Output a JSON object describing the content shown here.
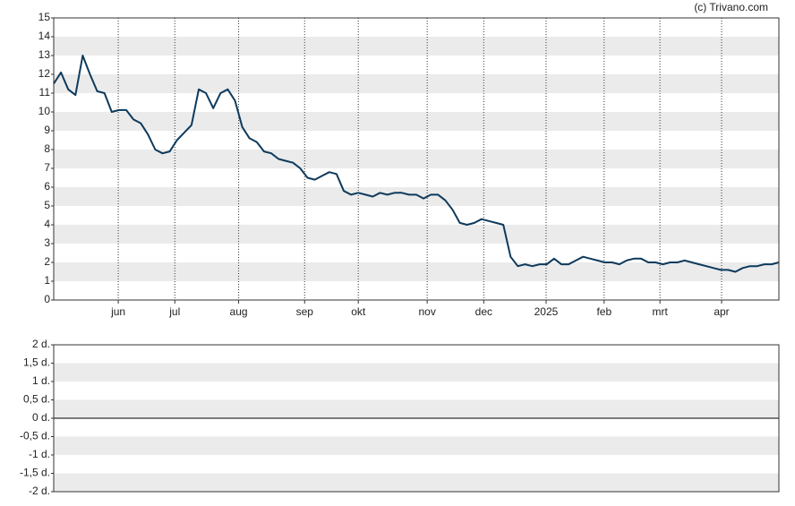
{
  "chart_data": [
    {
      "type": "line",
      "credit": "(c) Trivano.com",
      "xlim": [
        0,
        100
      ],
      "xticks": [
        {
          "value": 8.9,
          "label": "jun"
        },
        {
          "value": 16.7,
          "label": "jul"
        },
        {
          "value": 25.5,
          "label": "aug"
        },
        {
          "value": 34.6,
          "label": "sep"
        },
        {
          "value": 42.0,
          "label": "okt"
        },
        {
          "value": 51.5,
          "label": "nov"
        },
        {
          "value": 59.3,
          "label": "dec"
        },
        {
          "value": 67.9,
          "label": "2025"
        },
        {
          "value": 75.9,
          "label": "feb"
        },
        {
          "value": 83.6,
          "label": "mrt"
        },
        {
          "value": 92.1,
          "label": "apr"
        }
      ],
      "ylim": [
        0,
        15
      ],
      "yticks": [
        0,
        1,
        2,
        3,
        4,
        5,
        6,
        7,
        8,
        9,
        10,
        11,
        12,
        13,
        14,
        15
      ],
      "color": "#0d3a5c",
      "grid": true,
      "values": [
        11.5,
        12.1,
        11.2,
        10.9,
        13.0,
        12.0,
        11.1,
        11.0,
        10.0,
        10.1,
        10.1,
        9.6,
        9.4,
        8.8,
        8.0,
        7.8,
        7.9,
        8.5,
        8.9,
        9.3,
        11.2,
        11.0,
        10.2,
        11.0,
        11.2,
        10.6,
        9.2,
        8.6,
        8.4,
        7.9,
        7.8,
        7.5,
        7.4,
        7.3,
        7.0,
        6.5,
        6.4,
        6.6,
        6.8,
        6.7,
        5.8,
        5.6,
        5.7,
        5.6,
        5.5,
        5.7,
        5.6,
        5.7,
        5.7,
        5.6,
        5.6,
        5.4,
        5.6,
        5.6,
        5.3,
        4.8,
        4.1,
        4.0,
        4.1,
        4.3,
        4.2,
        4.1,
        4.0,
        2.3,
        1.8,
        1.9,
        1.8,
        1.9,
        1.9,
        2.2,
        1.9,
        1.9,
        2.1,
        2.3,
        2.2,
        2.1,
        2.0,
        2.0,
        1.9,
        2.1,
        2.2,
        2.2,
        2.0,
        2.0,
        1.9,
        2.0,
        2.0,
        2.1,
        2.0,
        1.9,
        1.8,
        1.7,
        1.6,
        1.6,
        1.5,
        1.7,
        1.8,
        1.8,
        1.9,
        1.9,
        2.0
      ]
    },
    {
      "type": "line",
      "ylim": [
        -2,
        2
      ],
      "yticks": [
        {
          "value": -2,
          "label": "-2 d."
        },
        {
          "value": -1.5,
          "label": "-1,5 d."
        },
        {
          "value": -1,
          "label": "-1 d."
        },
        {
          "value": -0.5,
          "label": "-0,5 d."
        },
        {
          "value": 0,
          "label": "0 d."
        },
        {
          "value": 0.5,
          "label": "0,5 d."
        },
        {
          "value": 1,
          "label": "1 d."
        },
        {
          "value": 1.5,
          "label": "1,5 d."
        },
        {
          "value": 2,
          "label": "2 d."
        }
      ],
      "grid": true,
      "values": []
    }
  ]
}
